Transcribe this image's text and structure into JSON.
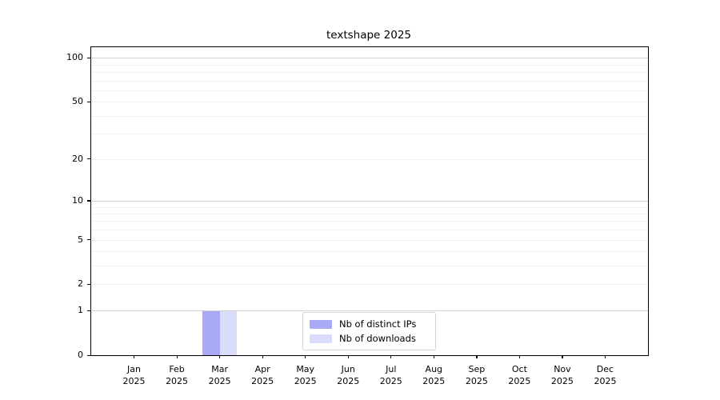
{
  "chart_data": {
    "type": "bar",
    "title": "textshape 2025",
    "categories": [
      "Jan 2025",
      "Feb 2025",
      "Mar 2025",
      "Apr 2025",
      "May 2025",
      "Jun 2025",
      "Jul 2025",
      "Aug 2025",
      "Sep 2025",
      "Oct 2025",
      "Nov 2025",
      "Dec 2025"
    ],
    "series": [
      {
        "name": "Nb of distinct IPs",
        "color": "#a9a9f7",
        "values": [
          0,
          0,
          1,
          0,
          0,
          0,
          0,
          0,
          0,
          0,
          0,
          0
        ]
      },
      {
        "name": "Nb of downloads",
        "color": "#dbdcfb",
        "values": [
          0,
          0,
          1,
          0,
          0,
          0,
          0,
          0,
          0,
          0,
          0,
          0
        ]
      }
    ],
    "xlabel": "",
    "ylabel": "",
    "yscale": "log1p",
    "ylim": [
      0,
      118
    ],
    "yticks": [
      0,
      1,
      2,
      5,
      10,
      20,
      50,
      100
    ],
    "grid": {
      "major": [
        1,
        10,
        100
      ],
      "minor": [
        2,
        3,
        4,
        5,
        6,
        7,
        8,
        9,
        20,
        30,
        40,
        50,
        60,
        70,
        80,
        90
      ]
    },
    "legend_position": "lower center",
    "colors": {
      "axis": "#000000",
      "grid_major": "#d2d2d2",
      "grid_minor": "#f0f0f0",
      "background": "#ffffff"
    }
  }
}
